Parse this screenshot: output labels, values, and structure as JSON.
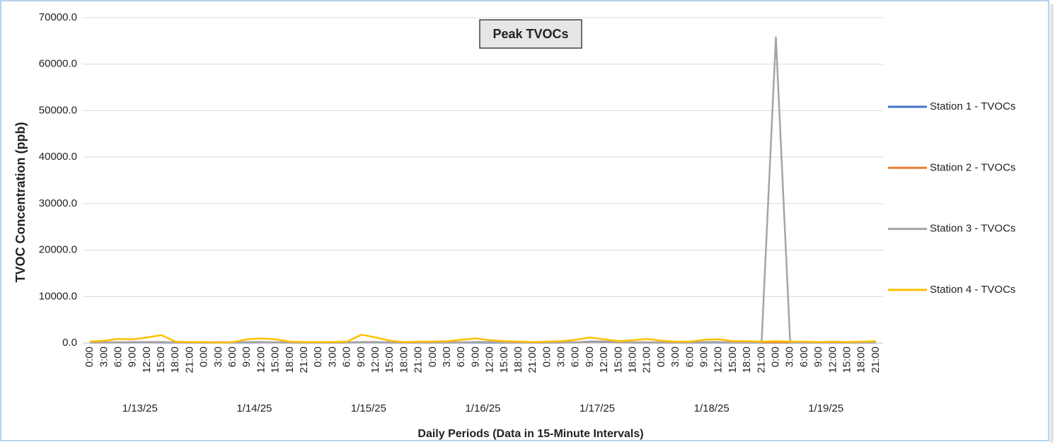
{
  "chart_data": {
    "type": "line",
    "title": "Peak TVOCs",
    "x_label": "Daily Periods (Data in 15-Minute Intervals)",
    "y_label": "TVOC Concentration (ppb)",
    "categories": [
      "0:00",
      "3:00",
      "6:00",
      "9:00",
      "12:00",
      "15:00",
      "18:00",
      "21:00",
      "0:00",
      "3:00",
      "6:00",
      "9:00",
      "12:00",
      "15:00",
      "18:00",
      "21:00",
      "0:00",
      "3:00",
      "6:00",
      "9:00",
      "12:00",
      "15:00",
      "18:00",
      "21:00",
      "0:00",
      "3:00",
      "6:00",
      "9:00",
      "12:00",
      "15:00",
      "18:00",
      "21:00",
      "0:00",
      "3:00",
      "6:00",
      "9:00",
      "12:00",
      "15:00",
      "18:00",
      "21:00",
      "0:00",
      "3:00",
      "6:00",
      "9:00",
      "12:00",
      "15:00",
      "18:00",
      "21:00",
      "0:00",
      "3:00",
      "6:00",
      "9:00",
      "12:00",
      "15:00",
      "18:00",
      "21:00"
    ],
    "day_labels": [
      "1/13/25",
      "1/14/25",
      "1/15/25",
      "1/16/25",
      "1/17/25",
      "1/18/25",
      "1/19/25"
    ],
    "ylim": [
      0,
      70000
    ],
    "yticks": [
      {
        "value": 0,
        "label": "0.0"
      },
      {
        "value": 10000,
        "label": "10000.0"
      },
      {
        "value": 20000,
        "label": "20000.0"
      },
      {
        "value": 30000,
        "label": "30000.0"
      },
      {
        "value": 40000,
        "label": "40000.0"
      },
      {
        "value": 50000,
        "label": "50000.0"
      },
      {
        "value": 60000,
        "label": "60000.0"
      },
      {
        "value": 70000,
        "label": "70000.0"
      }
    ],
    "grid": true,
    "legend": "right",
    "series": [
      {
        "name": "Station 1 - TVOCs",
        "color": "#4472c4",
        "values": [
          100,
          100,
          120,
          150,
          150,
          120,
          100,
          100,
          100,
          100,
          100,
          120,
          150,
          120,
          100,
          100,
          100,
          100,
          100,
          150,
          150,
          100,
          100,
          100,
          100,
          100,
          100,
          120,
          100,
          100,
          100,
          100,
          100,
          100,
          150,
          300,
          300,
          150,
          100,
          100,
          100,
          100,
          100,
          120,
          120,
          100,
          100,
          100,
          100,
          100,
          100,
          100,
          100,
          100,
          100,
          100
        ]
      },
      {
        "name": "Station 2 - TVOCs",
        "color": "#ed7d31",
        "values": [
          150,
          150,
          150,
          200,
          200,
          200,
          150,
          150,
          150,
          150,
          150,
          200,
          200,
          150,
          150,
          150,
          150,
          150,
          150,
          200,
          200,
          150,
          150,
          150,
          150,
          150,
          150,
          200,
          200,
          150,
          150,
          150,
          150,
          150,
          150,
          200,
          200,
          150,
          150,
          150,
          150,
          150,
          150,
          200,
          200,
          150,
          150,
          150,
          150,
          150,
          150,
          150,
          150,
          150,
          150,
          150
        ]
      },
      {
        "name": "Station 3 - TVOCs",
        "color": "#a5a5a5",
        "values": [
          150,
          150,
          150,
          200,
          200,
          200,
          150,
          150,
          150,
          150,
          150,
          200,
          200,
          150,
          150,
          150,
          150,
          150,
          150,
          200,
          200,
          150,
          150,
          150,
          150,
          150,
          150,
          200,
          200,
          150,
          150,
          150,
          150,
          150,
          150,
          200,
          200,
          150,
          150,
          150,
          150,
          150,
          150,
          200,
          200,
          150,
          150,
          150,
          65800,
          150,
          150,
          150,
          150,
          150,
          150,
          150
        ]
      },
      {
        "name": "Station 4 - TVOCs",
        "color": "#ffc000",
        "values": [
          300,
          500,
          900,
          800,
          1200,
          1700,
          300,
          200,
          200,
          100,
          200,
          800,
          1000,
          800,
          300,
          200,
          200,
          200,
          300,
          1800,
          1200,
          500,
          200,
          300,
          300,
          400,
          700,
          1000,
          600,
          400,
          300,
          200,
          300,
          400,
          700,
          1200,
          800,
          400,
          600,
          900,
          500,
          300,
          300,
          700,
          800,
          400,
          400,
          300,
          400,
          300,
          300,
          200,
          300,
          200,
          300,
          400
        ]
      }
    ]
  }
}
